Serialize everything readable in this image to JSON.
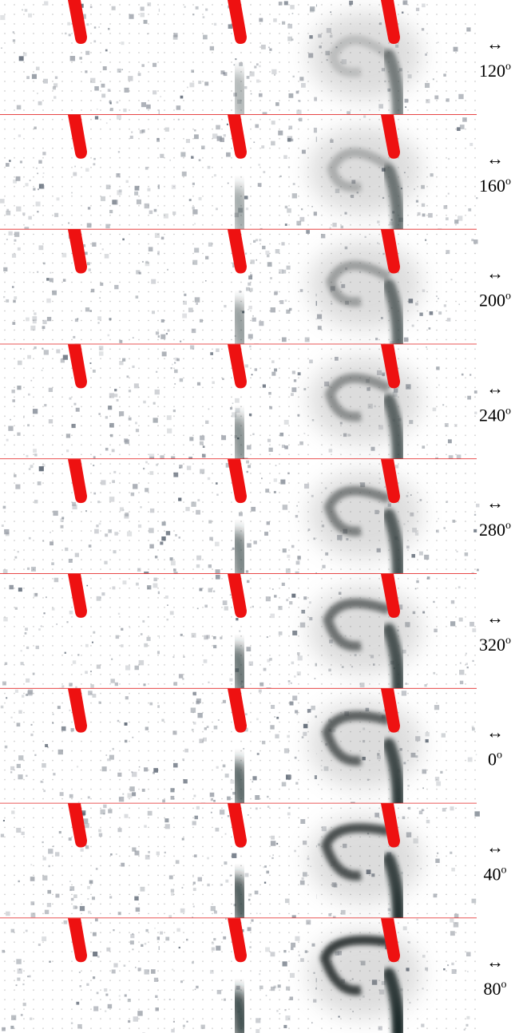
{
  "rows": [
    {
      "arrow": "↔",
      "angle": "120",
      "unit": "o"
    },
    {
      "arrow": "↔",
      "angle": "160",
      "unit": "o"
    },
    {
      "arrow": "↔",
      "angle": "200",
      "unit": "o"
    },
    {
      "arrow": "↔",
      "angle": "240",
      "unit": "o"
    },
    {
      "arrow": "↔",
      "angle": "280",
      "unit": "o"
    },
    {
      "arrow": "↔",
      "angle": "320",
      "unit": "o"
    },
    {
      "arrow": "↔",
      "angle": "0",
      "unit": "o"
    },
    {
      "arrow": "↔",
      "angle": "40",
      "unit": "o"
    },
    {
      "arrow": "↔",
      "angle": "80",
      "unit": "o"
    }
  ]
}
